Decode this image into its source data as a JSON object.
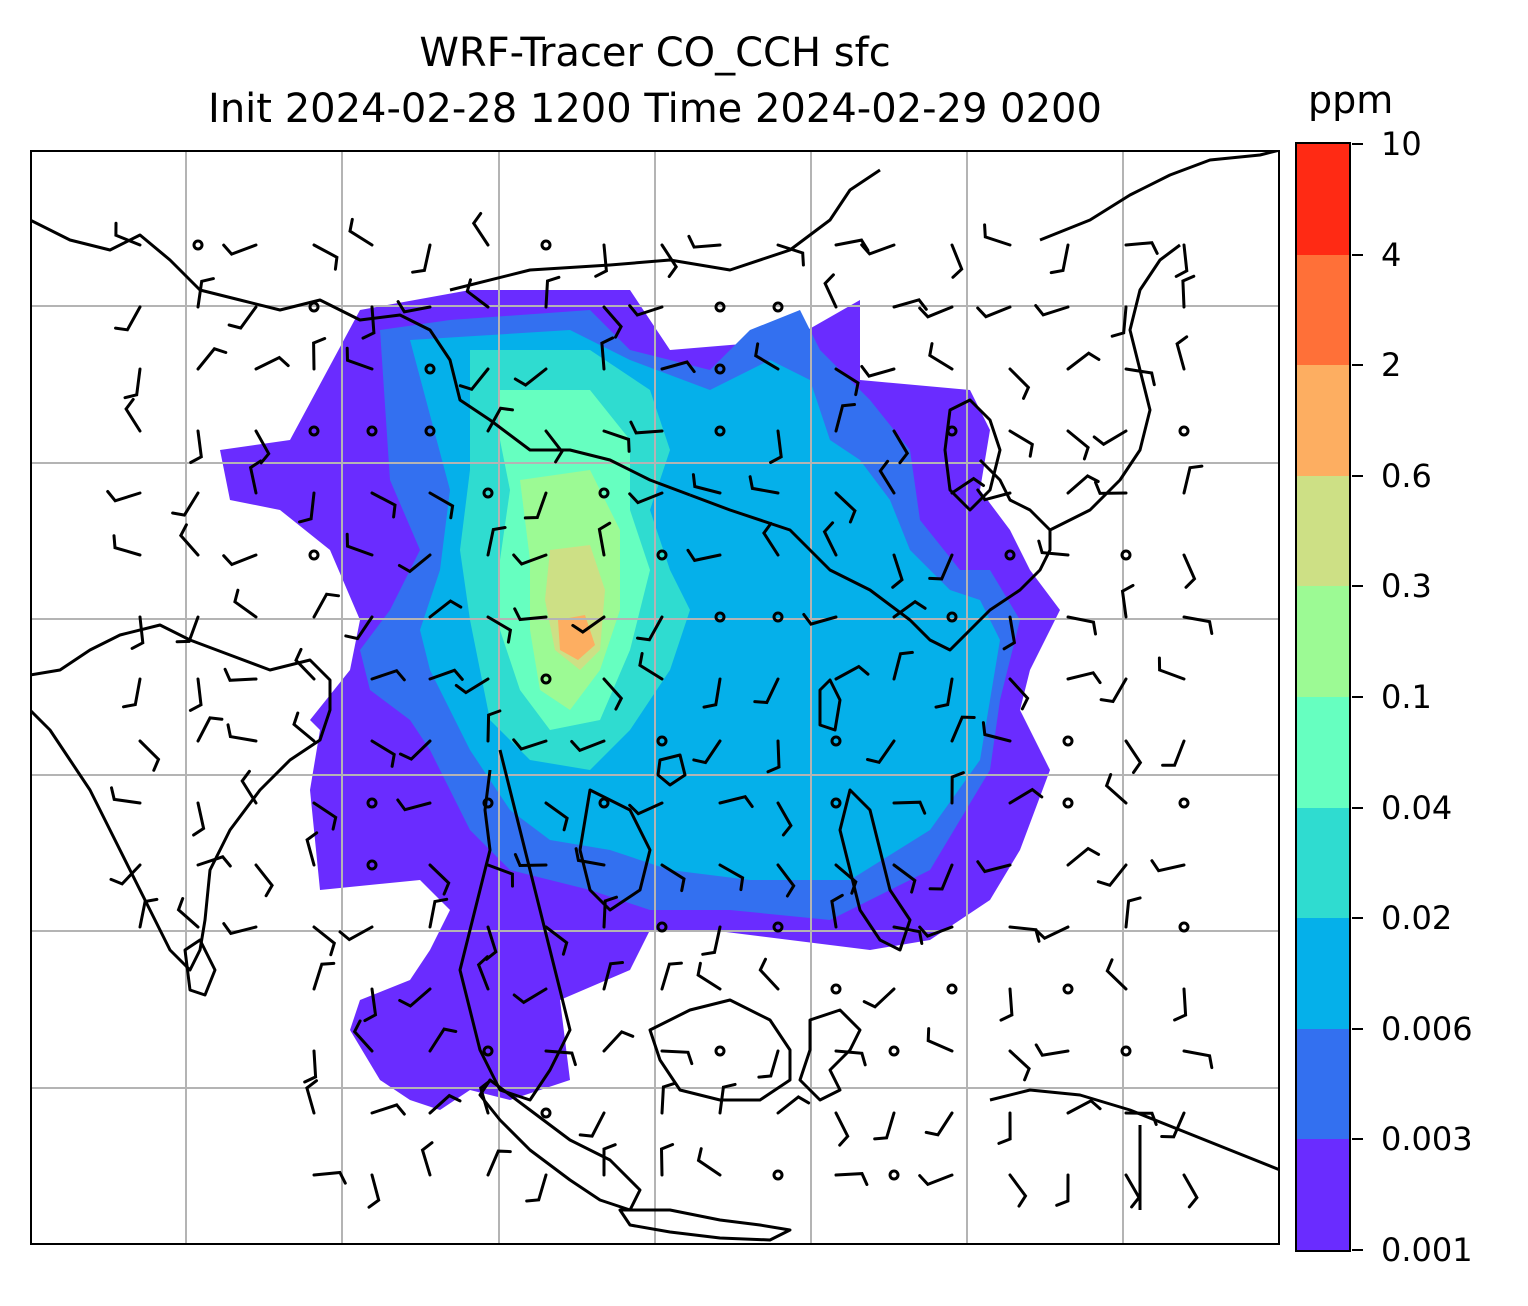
{
  "title_line1": "WRF-Tracer CO_CCH sfc",
  "title_line2": "Init 2024-02-28 1200 Time 2024-02-29 0200",
  "colorbar": {
    "units": "ppm",
    "levels": [
      "0.001",
      "0.003",
      "0.006",
      "0.02",
      "0.04",
      "0.1",
      "0.3",
      "0.6",
      "2",
      "4",
      "10"
    ],
    "colors": [
      "#6a2cff",
      "#3370f0",
      "#05b0ea",
      "#2fdcd0",
      "#66ffc0",
      "#9cfa94",
      "#cde085",
      "#fdae61",
      "#ff7038",
      "#ff2a14"
    ]
  },
  "map": {
    "grid_color": "#b4b4b4",
    "coastline_color": "#000000",
    "wind_barb_color": "#000000"
  }
}
